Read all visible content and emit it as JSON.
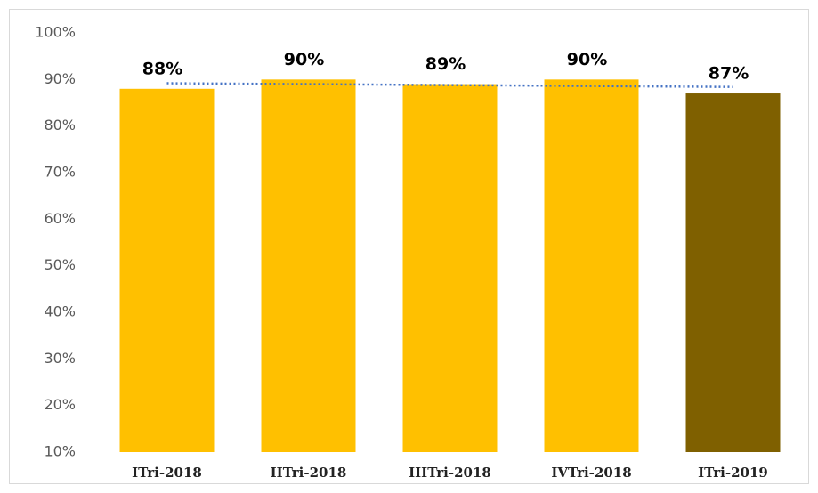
{
  "chart_data": {
    "type": "bar",
    "categories": [
      "ITri-2018",
      "IITri-2018",
      "IIITri-2018",
      "IVTri-2018",
      "ITri-2019"
    ],
    "values": [
      88,
      90,
      89,
      90,
      87
    ],
    "value_labels": [
      "88%",
      "90%",
      "89%",
      "90%",
      "87%"
    ],
    "colors": [
      "#ffc000",
      "#ffc000",
      "#ffc000",
      "#ffc000",
      "#7f6000"
    ],
    "ylim": [
      10,
      100
    ],
    "yticks": [
      {
        "value": 10,
        "label": "10%"
      },
      {
        "value": 20,
        "label": "20%"
      },
      {
        "value": 30,
        "label": "30%"
      },
      {
        "value": 40,
        "label": "40%"
      },
      {
        "value": 50,
        "label": "50%"
      },
      {
        "value": 60,
        "label": "60%"
      },
      {
        "value": 70,
        "label": "70%"
      },
      {
        "value": 80,
        "label": "80%"
      },
      {
        "value": 90,
        "label": "90%"
      },
      {
        "value": 100,
        "label": "100%"
      }
    ],
    "grid": false,
    "trendline": {
      "type": "linear",
      "color": "#4472c4"
    }
  }
}
